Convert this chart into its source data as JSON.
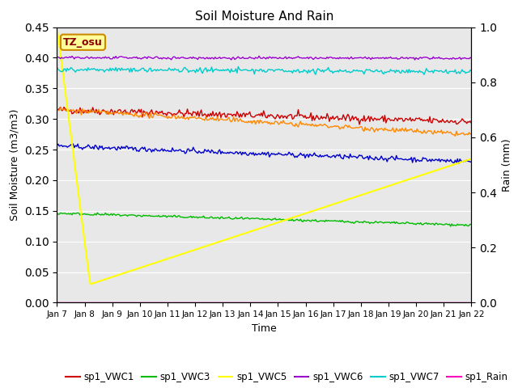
{
  "title": "Soil Moisture And Rain",
  "xlabel": "Time",
  "ylabel_left": "Soil Moisture (m3/m3)",
  "ylabel_right": "Rain (mm)",
  "site_label": "TZ_osu",
  "ylim_left": [
    0.0,
    0.45
  ],
  "ylim_right": [
    0.0,
    1.0
  ],
  "x_ticks_labels": [
    "Jan 7",
    "Jan 8",
    "Jan 9",
    "Jan 10",
    "Jan 11",
    "Jan 12",
    "Jan 13",
    "Jan 14",
    "Jan 15",
    "Jan 16",
    "Jan 17",
    "Jan 18",
    "Jan 19",
    "Jan 20",
    "Jan 21",
    "Jan 22"
  ],
  "colors": {
    "sp1_VWC1": "#cc0000",
    "sp1_VWC2": "#0000cc",
    "sp1_VWC3": "#00bb00",
    "sp1_VWC4": "#ff8800",
    "sp1_VWC5": "#ffff00",
    "sp1_VWC6": "#9900cc",
    "sp1_VWC7": "#00cccc",
    "sp1_Rain": "#ff00bb"
  },
  "background_color": "#e8e8e8",
  "n_points": 360
}
